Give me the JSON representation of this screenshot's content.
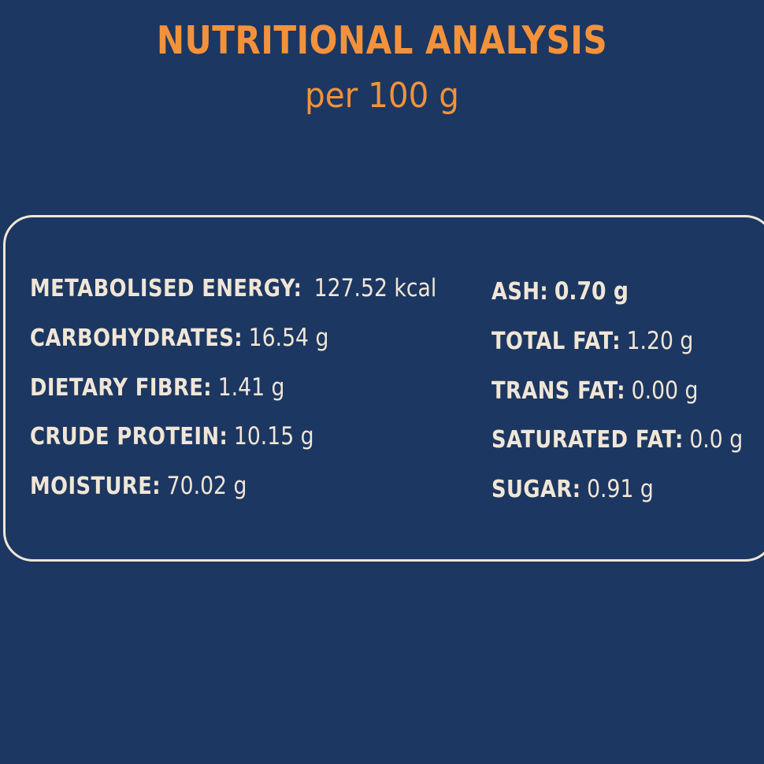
{
  "header": {
    "title": "NUTRITIONAL ANALYSIS",
    "subtitle": "per 100 g"
  },
  "nutrients": {
    "left": [
      {
        "label": "METABOLISED ENERGY:",
        "value": "127.52 kcal"
      },
      {
        "label": "CARBOHYDRATES:",
        "value": "16.54 g"
      },
      {
        "label": "DIETARY FIBRE:",
        "value": "1.41 g"
      },
      {
        "label": "CRUDE PROTEIN:",
        "value": "10.15 g"
      },
      {
        "label": "MOISTURE:",
        "value": "70.02 g"
      }
    ],
    "right": [
      {
        "label": "ASH:",
        "value": "0.70 g"
      },
      {
        "label": "TOTAL FAT:",
        "value": "1.20 g"
      },
      {
        "label": "TRANS FAT:",
        "value": "0.00 g"
      },
      {
        "label": "SATURATED FAT:",
        "value": "0.0 g"
      },
      {
        "label": "SUGAR:",
        "value": "0.91 g"
      }
    ]
  },
  "colors": {
    "background": "#1c3761",
    "accent": "#f4923b",
    "text": "#f1e6d6"
  }
}
